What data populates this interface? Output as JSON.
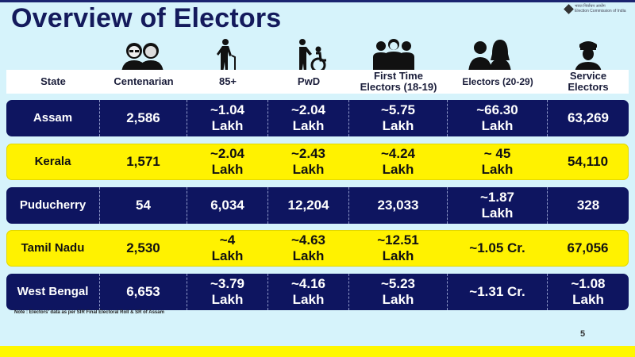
{
  "slide": {
    "title": "Overview of Electors",
    "logo_text_line1": "भारत निर्वाचन आयोग",
    "logo_text_line2": "Election Commission of India",
    "note": "Note : Electors' data as per SIR Final Electoral Roll & SR of Assam",
    "page_number": "5"
  },
  "colors": {
    "background": "#d6f3fb",
    "title": "#141a5c",
    "navy_row": "#0e1560",
    "yellow_row": "#fff200",
    "bottom_band": "#fff700"
  },
  "table": {
    "headers": [
      {
        "label": "State",
        "icon": null
      },
      {
        "label": "Centenarian",
        "icon": "elderly-couple-icon"
      },
      {
        "label": "85+",
        "icon": "elderly-with-cane-icon"
      },
      {
        "label": "PwD",
        "icon": "wheelchair-assist-icon"
      },
      {
        "label": "First Time",
        "label2": "Electors (18-19)",
        "icon": "young-group-icon"
      },
      {
        "label": "Electors (20-29)",
        "icon": "young-couple-icon"
      },
      {
        "label": "Service",
        "label2": "Electors",
        "icon": "military-officer-icon"
      }
    ],
    "rows": [
      {
        "style": "navy",
        "cells": [
          "Assam",
          "2,586",
          "~1.04\nLakh",
          "~2.04\nLakh",
          "~5.75\nLakh",
          "~66.30\nLakh",
          "63,269"
        ]
      },
      {
        "style": "yellow",
        "cells": [
          "Kerala",
          "1,571",
          "~2.04\nLakh",
          "~2.43\nLakh",
          "~4.24\nLakh",
          "~ 45\nLakh",
          "54,110"
        ]
      },
      {
        "style": "navy",
        "cells": [
          "Puducherry",
          "54",
          "6,034",
          "12,204",
          "23,033",
          "~1.87\nLakh",
          "328"
        ]
      },
      {
        "style": "yellow",
        "cells": [
          "Tamil Nadu",
          "2,530",
          "~4\nLakh",
          "~4.63\nLakh",
          "~12.51\nLakh",
          "~1.05 Cr.",
          "67,056"
        ]
      },
      {
        "style": "navy",
        "cells": [
          "West Bengal",
          "6,653",
          "~3.79\nLakh",
          "~4.16\nLakh",
          "~5.23\nLakh",
          "~1.31 Cr.",
          "~1.08\nLakh"
        ]
      }
    ]
  },
  "chart_data": {
    "type": "table",
    "title": "Overview of Electors",
    "columns": [
      "State",
      "Centenarian",
      "85+",
      "PwD",
      "First Time Electors (18-19)",
      "Electors (20-29)",
      "Service Electors"
    ],
    "rows": [
      [
        "Assam",
        "2,586",
        "~1.04 Lakh",
        "~2.04 Lakh",
        "~5.75 Lakh",
        "~66.30 Lakh",
        "63,269"
      ],
      [
        "Kerala",
        "1,571",
        "~2.04 Lakh",
        "~2.43 Lakh",
        "~4.24 Lakh",
        "~ 45 Lakh",
        "54,110"
      ],
      [
        "Puducherry",
        "54",
        "6,034",
        "12,204",
        "23,033",
        "~1.87 Lakh",
        "328"
      ],
      [
        "Tamil Nadu",
        "2,530",
        "~4 Lakh",
        "~4.63 Lakh",
        "~12.51 Lakh",
        "~1.05 Cr.",
        "67,056"
      ],
      [
        "West Bengal",
        "6,653",
        "~3.79 Lakh",
        "~4.16 Lakh",
        "~5.23 Lakh",
        "~1.31 Cr.",
        "~1.08 Lakh"
      ]
    ],
    "note": "Note : Electors' data as per SIR Final Electoral Roll & SR of Assam"
  }
}
